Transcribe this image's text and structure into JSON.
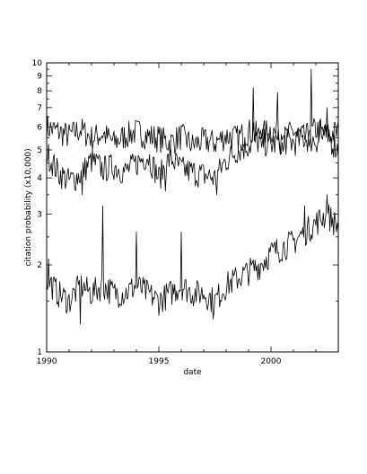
{
  "chart_data": {
    "type": "line",
    "title": "",
    "xlabel": "date",
    "ylabel": "citation probability (x10,000)",
    "xlim": [
      1990,
      2003
    ],
    "ylim": [
      1,
      10
    ],
    "yscale": "log",
    "grid": false,
    "legend": "none",
    "x_ticks": [
      1990,
      1995,
      2000
    ],
    "x_tick_labels": [
      "1990",
      "1995",
      "2000"
    ],
    "y_major_ticks": [
      1,
      2,
      3,
      4,
      5,
      6,
      7,
      8,
      9,
      10
    ],
    "y_tick_labels": [
      "1",
      "2",
      "3",
      "4",
      "5",
      "6",
      "7",
      "8",
      "9",
      "10"
    ],
    "y_minor_ticks": [
      1.5,
      2.5,
      3.5,
      4.5,
      5.5,
      6.5,
      7.5,
      8.5,
      9.5
    ],
    "series": [
      {
        "x": [
          1990.0,
          1990.5,
          1991.0,
          1991.5,
          1992.0,
          1992.5,
          1993.0,
          1993.5,
          1994.0,
          1994.5,
          1995.0,
          1995.5,
          1996.0,
          1996.5,
          1997.0,
          1997.5,
          1998.0,
          1998.5,
          1999.0,
          1999.5,
          2000.0,
          2000.5,
          2001.0,
          2001.5,
          2002.0,
          2002.5,
          2003.0
        ],
        "values": [
          6.0,
          5.8,
          5.6,
          5.9,
          5.5,
          5.7,
          5.3,
          5.6,
          5.8,
          5.6,
          5.5,
          5.3,
          5.6,
          5.2,
          5.4,
          5.3,
          5.6,
          5.5,
          5.8,
          5.6,
          5.9,
          5.4,
          5.8,
          5.5,
          5.9,
          5.6,
          5.8
        ],
        "peaks": [
          [
            1996.2,
            5.6
          ],
          [
            1999.2,
            8.2
          ],
          [
            2000.3,
            7.9
          ],
          [
            2001.8,
            9.5
          ],
          [
            2002.5,
            7.0
          ]
        ]
      },
      {
        "x": [
          1990.0,
          1990.5,
          1991.0,
          1991.5,
          1992.0,
          1992.5,
          1993.0,
          1993.5,
          1994.0,
          1994.5,
          1995.0,
          1995.5,
          1996.0,
          1996.5,
          1997.0,
          1997.5,
          1998.0,
          1998.5,
          1999.0,
          1999.5,
          2000.0,
          2000.5,
          2001.0,
          2001.5,
          2002.0,
          2002.5,
          2003.0
        ],
        "values": [
          4.9,
          4.2,
          3.9,
          4.1,
          4.6,
          4.3,
          4.4,
          4.2,
          4.5,
          4.8,
          4.0,
          4.7,
          4.3,
          4.2,
          4.1,
          4.0,
          4.6,
          5.0,
          5.2,
          5.4,
          5.2,
          5.4,
          5.3,
          5.5,
          5.4,
          5.6,
          5.0
        ],
        "peaks": [
          [
            1991.6,
            3.5
          ],
          [
            1995.3,
            3.6
          ],
          [
            1997.6,
            3.5
          ],
          [
            1999.2,
            6.2
          ],
          [
            2002.2,
            6.4
          ]
        ]
      },
      {
        "x": [
          1990.0,
          1990.5,
          1991.0,
          1991.5,
          1992.0,
          1992.5,
          1993.0,
          1993.5,
          1994.0,
          1994.5,
          1995.0,
          1995.5,
          1996.0,
          1996.5,
          1997.0,
          1997.5,
          1998.0,
          1998.5,
          1999.0,
          1999.5,
          2000.0,
          2000.5,
          2001.0,
          2001.5,
          2002.0,
          2002.5,
          2003.0
        ],
        "values": [
          1.8,
          1.6,
          1.5,
          1.7,
          1.6,
          1.7,
          1.6,
          1.6,
          1.7,
          1.6,
          1.5,
          1.6,
          1.7,
          1.6,
          1.6,
          1.5,
          1.7,
          1.8,
          1.9,
          2.0,
          2.2,
          2.3,
          2.4,
          2.6,
          2.8,
          3.0,
          2.7
        ],
        "peaks": [
          [
            1990.1,
            2.1
          ],
          [
            1991.5,
            1.25
          ],
          [
            1992.5,
            3.2
          ],
          [
            1994.0,
            2.6
          ],
          [
            1996.0,
            2.6
          ],
          [
            1997.4,
            1.3
          ],
          [
            2001.5,
            3.2
          ],
          [
            2002.5,
            3.5
          ]
        ]
      }
    ]
  }
}
